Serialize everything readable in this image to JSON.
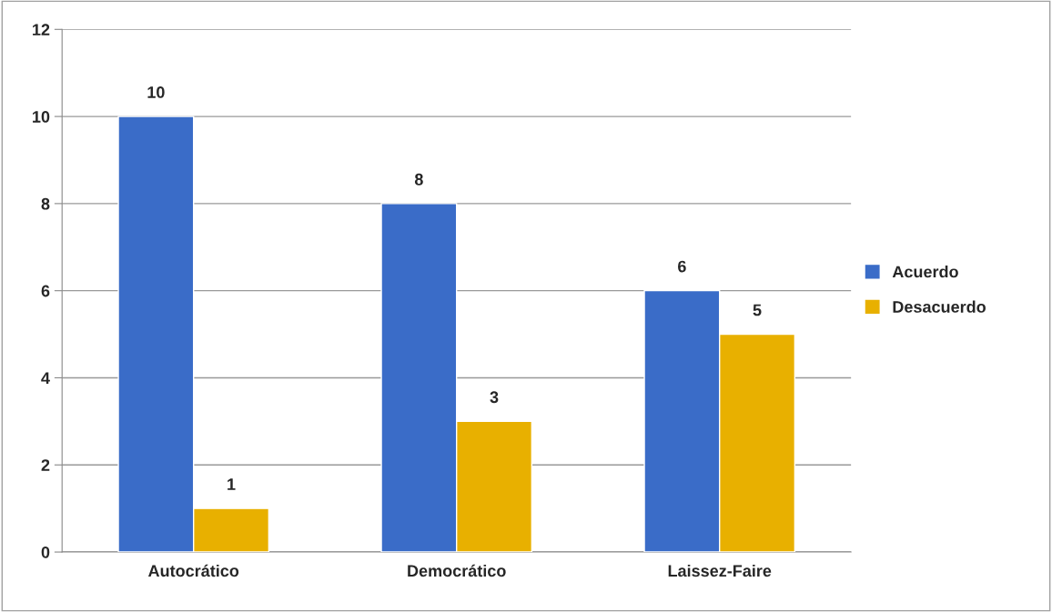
{
  "chart_data": {
    "type": "bar",
    "categories": [
      "Autocrático",
      "Democrático",
      "Laissez-Faire"
    ],
    "series": [
      {
        "name": "Acuerdo",
        "color": "#3a6cc8",
        "values": [
          10,
          8,
          6
        ]
      },
      {
        "name": "Desacuerdo",
        "color": "#e8b000",
        "values": [
          1,
          3,
          5
        ]
      }
    ],
    "ylim": [
      0,
      12
    ],
    "yticks": [
      0,
      2,
      4,
      6,
      8,
      10,
      12
    ],
    "grid": "y",
    "legend": "right",
    "data_labels": true
  }
}
